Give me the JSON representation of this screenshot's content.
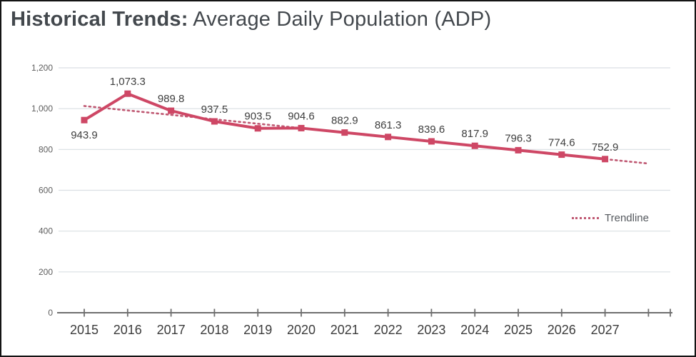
{
  "header": {
    "title_bold": "Historical Trends:",
    "title_rest": " Average Daily Population (ADP)"
  },
  "legend": {
    "trendline_label": "Trendline"
  },
  "chart_data": {
    "type": "line",
    "title": "Historical Trends: Average Daily Population (ADP)",
    "categories": [
      2015,
      2016,
      2017,
      2018,
      2019,
      2020,
      2021,
      2022,
      2023,
      2024,
      2025,
      2026,
      2027
    ],
    "series": [
      {
        "name": "Average Daily Population",
        "values": [
          943.9,
          1073.3,
          989.8,
          937.5,
          903.5,
          904.6,
          882.9,
          861.3,
          839.6,
          817.9,
          796.3,
          774.6,
          752.9
        ],
        "color": "#ce4765",
        "marker": "square"
      }
    ],
    "data_labels": [
      "943.9",
      "1,073.3",
      "989.8",
      "937.5",
      "903.5",
      "904.6",
      "882.9",
      "861.3",
      "839.6",
      "817.9",
      "796.3",
      "774.6",
      "752.9"
    ],
    "first_label_below": true,
    "trendline": {
      "label": "Trendline",
      "style": "dotted",
      "color": "#bf5872",
      "start_year": 2015,
      "start_value": 1013,
      "end_year": 2028,
      "end_value": 731
    },
    "xlabel": "",
    "ylabel": "",
    "ylim": [
      0,
      1200
    ],
    "y_tick_step": 200,
    "y_tick_labels": [
      "0",
      "200",
      "400",
      "600",
      "800",
      "1,000",
      "1,200"
    ],
    "x_axis_extra_tick_years": 1,
    "grid": true,
    "legend_position": "right-middle",
    "colors": {
      "grid": "#dadfe3",
      "axis": "#6f6f6f",
      "y_tick_text": "#5d5d5d",
      "x_tick_text": "#3c3c3c",
      "data_label_text": "#3e3e3e"
    }
  }
}
